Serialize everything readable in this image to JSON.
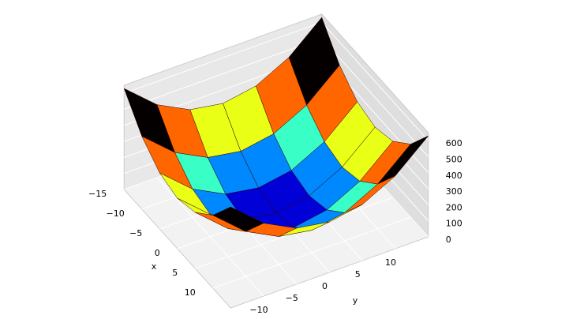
{
  "chart_data": {
    "type": "surface",
    "xlabel": "x",
    "ylabel": "y",
    "x": [
      -15,
      -10,
      -5,
      0,
      5,
      10,
      15
    ],
    "y": [
      -15,
      -10,
      -5,
      0,
      5,
      10,
      15
    ],
    "z": [
      [
        630,
        455,
        350,
        315,
        350,
        455,
        630
      ],
      [
        455,
        280,
        175,
        140,
        175,
        280,
        455
      ],
      [
        350,
        175,
        70,
        35,
        70,
        175,
        350
      ],
      [
        315,
        140,
        35,
        0,
        35,
        140,
        315
      ],
      [
        350,
        175,
        70,
        35,
        70,
        175,
        350
      ],
      [
        455,
        280,
        175,
        140,
        175,
        280,
        455
      ],
      [
        630,
        455,
        350,
        315,
        350,
        455,
        630
      ]
    ],
    "colormap": "jet",
    "xlim": [
      -15,
      15
    ],
    "ylim": [
      -15,
      15
    ],
    "zlim": [
      0,
      650
    ],
    "xticks": [
      {
        "value": -15,
        "label": "−15"
      },
      {
        "value": -10,
        "label": "−10"
      },
      {
        "value": -5,
        "label": "−5"
      },
      0,
      5,
      10
    ],
    "yticks": [
      {
        "value": -10,
        "label": "−10"
      },
      {
        "value": -5,
        "label": "−5"
      },
      0,
      5,
      10
    ],
    "zticks": [
      0,
      100,
      200,
      300,
      400,
      500,
      600
    ],
    "grid": true
  }
}
